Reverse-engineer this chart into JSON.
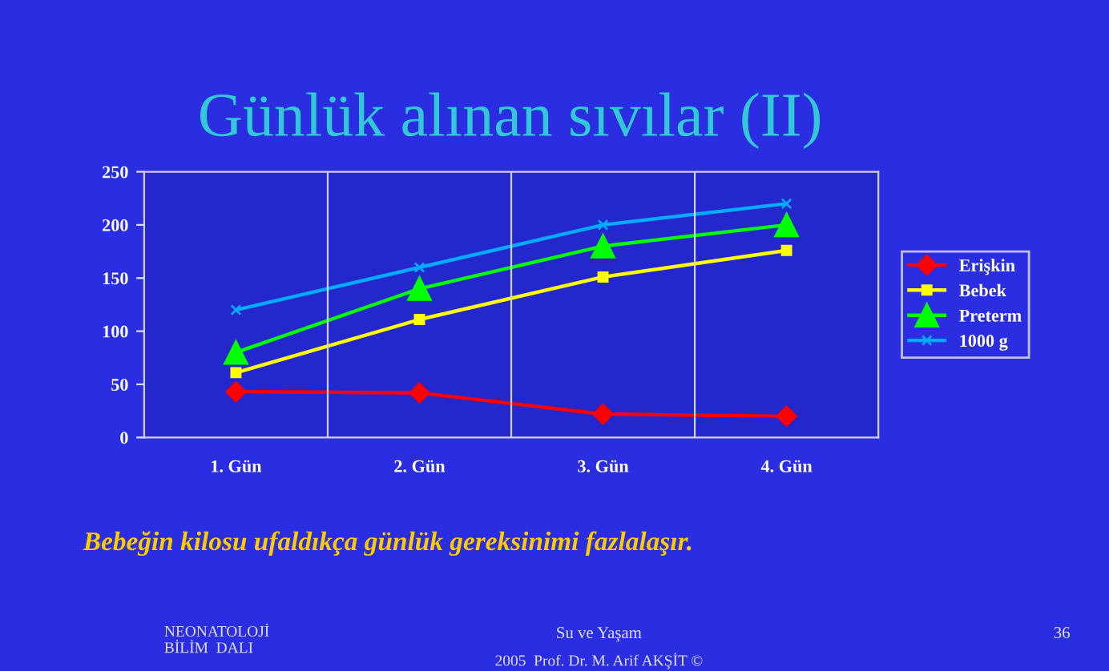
{
  "chart_data": {
    "type": "line",
    "title": "Günlük alınan sıvılar (II)",
    "categories": [
      "1. Gün",
      "2. Gün",
      "3. Gün",
      "4. Gün"
    ],
    "series": [
      {
        "name": "Erişkin",
        "color": "#ff0000",
        "marker": "diamond",
        "values": [
          43,
          42,
          22,
          20
        ]
      },
      {
        "name": "Bebek",
        "color": "#ffff00",
        "marker": "square",
        "values": [
          61,
          111,
          151,
          176
        ]
      },
      {
        "name": "Preterm",
        "color": "#00ff00",
        "marker": "triangle",
        "values": [
          80,
          140,
          180,
          200
        ]
      },
      {
        "name": "1000 g",
        "color": "#00aaff",
        "marker": "cross",
        "values": [
          120,
          160,
          200,
          220
        ]
      }
    ],
    "ylim": [
      0,
      250
    ],
    "yticks": [
      0,
      50,
      100,
      150,
      200,
      250
    ],
    "grid": "x",
    "legend": "right",
    "annotations": [
      "Bebeğin kilosu ufaldıkça günlük gereksinimi fazlalaşır.",
      "NEONATOLOJİ\nBİLİM  DALI",
      "Su ve Yaşam",
      "2005  Prof. Dr. M. Arif AKŞİT ©",
      "36"
    ]
  }
}
